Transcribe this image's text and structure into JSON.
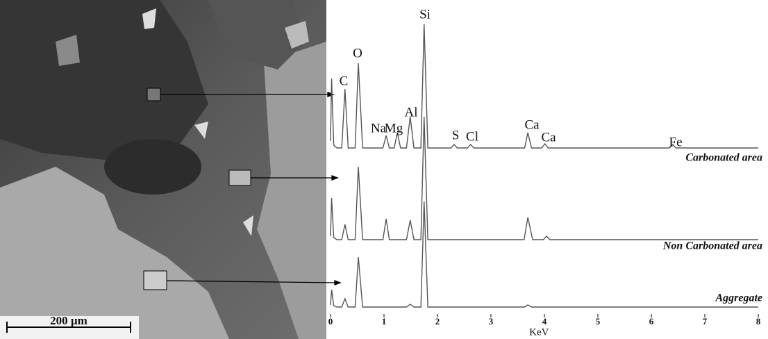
{
  "chart_data": {
    "type": "line",
    "scale_bar": "200 µm",
    "x_label": "KeV",
    "xlim": [
      0,
      8
    ],
    "xticks": [
      0,
      1,
      2,
      3,
      4,
      5,
      6,
      7,
      8
    ],
    "peak_labels": [
      "C",
      "O",
      "Na",
      "Mg",
      "Al",
      "Si",
      "S",
      "Cl",
      "Ca",
      "Ca",
      "Fe"
    ],
    "series": [
      {
        "name": "Carbonated area",
        "color": "#555555",
        "x": [
          0,
          0.02,
          0.06,
          0.12,
          0.21,
          0.27,
          0.33,
          0.46,
          0.52,
          0.6,
          0.98,
          1.04,
          1.1,
          1.19,
          1.25,
          1.31,
          1.42,
          1.49,
          1.56,
          1.69,
          1.75,
          1.82,
          2.25,
          2.31,
          2.37,
          2.56,
          2.62,
          2.68,
          3.63,
          3.69,
          3.76,
          3.95,
          4.01,
          4.07,
          6.34,
          6.4,
          6.46,
          8
        ],
        "values": [
          10,
          100,
          4,
          0,
          0,
          85,
          0,
          0,
          122,
          0,
          0,
          18,
          0,
          0,
          22,
          0,
          0,
          45,
          0,
          0,
          178,
          0,
          0,
          5,
          0,
          0,
          5,
          0,
          0,
          22,
          0,
          0,
          6,
          0,
          0,
          5,
          0,
          0
        ]
      },
      {
        "name": "Non Carbonated area",
        "color": "#555555",
        "x": [
          0,
          0.02,
          0.06,
          0.12,
          0.21,
          0.27,
          0.33,
          0.46,
          0.52,
          0.6,
          0.98,
          1.04,
          1.1,
          1.42,
          1.49,
          1.56,
          1.69,
          1.75,
          1.82,
          3.62,
          3.69,
          3.78,
          3.98,
          4.04,
          4.1,
          8
        ],
        "values": [
          5,
          60,
          3,
          0,
          0,
          22,
          0,
          0,
          105,
          0,
          0,
          30,
          0,
          0,
          28,
          0,
          0,
          177,
          0,
          0,
          32,
          0,
          0,
          5,
          0,
          0
        ]
      },
      {
        "name": "Aggregate",
        "color": "#555555",
        "x": [
          0,
          0.02,
          0.06,
          0.12,
          0.21,
          0.27,
          0.33,
          0.46,
          0.52,
          0.6,
          1.42,
          1.49,
          1.56,
          1.69,
          1.75,
          1.82,
          3.63,
          3.69,
          3.76,
          8
        ],
        "values": [
          3,
          25,
          2,
          0,
          0,
          12,
          0,
          0,
          72,
          0,
          0,
          4,
          0,
          0,
          152,
          0,
          0,
          3,
          0,
          0
        ]
      }
    ]
  }
}
